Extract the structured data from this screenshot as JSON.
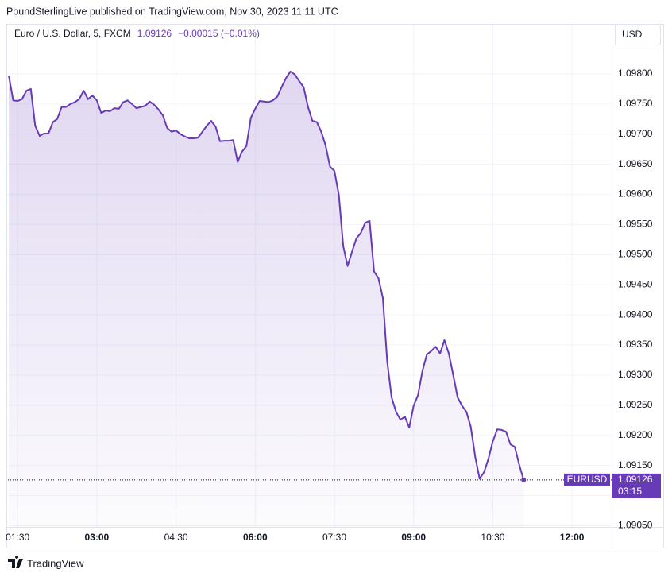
{
  "header": {
    "publisher": "PoundSterlingLive published on TradingView.com, Nov 30, 2023 11:11 UTC"
  },
  "footer": {
    "brand": "TradingView"
  },
  "chart_data": {
    "type": "area",
    "title": "Euro / U.S. Dollar, 5, FXCM",
    "change": "−0.00015 (−0.01%)",
    "currency": "USD",
    "symbol": "EURUSD",
    "countdown": "03:15",
    "x": [
      "01:20",
      "01:25",
      "01:30",
      "01:35",
      "01:40",
      "01:45",
      "01:50",
      "01:55",
      "02:00",
      "02:05",
      "02:10",
      "02:15",
      "02:20",
      "02:25",
      "02:30",
      "02:35",
      "02:40",
      "02:45",
      "02:50",
      "02:55",
      "03:00",
      "03:05",
      "03:10",
      "03:15",
      "03:20",
      "03:25",
      "03:30",
      "03:35",
      "03:40",
      "03:45",
      "03:50",
      "03:55",
      "04:00",
      "04:05",
      "04:10",
      "04:15",
      "04:20",
      "04:25",
      "04:30",
      "04:35",
      "04:40",
      "04:45",
      "04:50",
      "04:55",
      "05:00",
      "05:05",
      "05:10",
      "05:15",
      "05:20",
      "05:25",
      "05:30",
      "05:35",
      "05:40",
      "05:45",
      "05:50",
      "05:55",
      "06:00",
      "06:05",
      "06:10",
      "06:15",
      "06:20",
      "06:25",
      "06:30",
      "06:35",
      "06:40",
      "06:45",
      "06:50",
      "06:55",
      "07:00",
      "07:05",
      "07:10",
      "07:15",
      "07:20",
      "07:25",
      "07:30",
      "07:35",
      "07:40",
      "07:45",
      "07:50",
      "07:55",
      "08:00",
      "08:05",
      "08:10",
      "08:15",
      "08:20",
      "08:25",
      "08:30",
      "08:35",
      "08:40",
      "08:45",
      "08:50",
      "08:55",
      "09:00",
      "09:05",
      "09:10",
      "09:15",
      "09:20",
      "09:25",
      "09:30",
      "09:35",
      "09:40",
      "09:45",
      "09:50",
      "09:55",
      "10:00",
      "10:05",
      "10:10",
      "10:15",
      "10:20",
      "10:25",
      "10:30",
      "10:35",
      "10:40",
      "10:45",
      "10:50",
      "10:55",
      "11:00",
      "11:05"
    ],
    "series": [
      {
        "name": "EURUSD",
        "color": "#673ab7",
        "values": [
          1.09797,
          1.09756,
          1.09755,
          1.09758,
          1.09772,
          1.09775,
          1.09714,
          1.09697,
          1.09701,
          1.09701,
          1.0972,
          1.09725,
          1.09745,
          1.09745,
          1.0975,
          1.09753,
          1.09758,
          1.09772,
          1.09758,
          1.09764,
          1.09756,
          1.09735,
          1.09739,
          1.09738,
          1.09743,
          1.09742,
          1.09753,
          1.09756,
          1.0975,
          1.09743,
          1.09745,
          1.09747,
          1.09754,
          1.09749,
          1.09741,
          1.09731,
          1.0971,
          1.09704,
          1.09706,
          1.097,
          1.09696,
          1.09693,
          1.09693,
          1.09694,
          1.09704,
          1.09714,
          1.09722,
          1.09712,
          1.09688,
          1.09689,
          1.09689,
          1.0969,
          1.09654,
          1.09671,
          1.0968,
          1.09727,
          1.09742,
          1.09755,
          1.09754,
          1.09753,
          1.09756,
          1.09762,
          1.09778,
          1.09793,
          1.09804,
          1.09799,
          1.09788,
          1.09778,
          1.09745,
          1.09722,
          1.0972,
          1.09704,
          1.09681,
          1.09646,
          1.09639,
          1.09599,
          1.09514,
          1.09481,
          1.09505,
          1.09527,
          1.09536,
          1.09553,
          1.09556,
          1.09472,
          1.09461,
          1.09428,
          1.09322,
          1.09263,
          1.09239,
          1.09226,
          1.09231,
          1.09213,
          1.09249,
          1.09267,
          1.09307,
          1.09334,
          1.0934,
          1.09347,
          1.09336,
          1.09358,
          1.09336,
          1.093,
          1.09263,
          1.09249,
          1.09239,
          1.09214,
          1.09164,
          1.09128,
          1.09139,
          1.09161,
          1.0919,
          1.0921,
          1.09209,
          1.09206,
          1.09185,
          1.09181,
          1.09151,
          1.09126
        ]
      }
    ],
    "xlim": [
      "01:19",
      "12:45"
    ],
    "xticks": [
      "01:30",
      "03:00",
      "04:30",
      "06:00",
      "07:30",
      "09:00",
      "10:30",
      "12:00"
    ],
    "ylim": [
      1.09048,
      1.0985
    ],
    "yticks": [
      {
        "value": 1.0905,
        "label": "1.09050"
      },
      {
        "value": 1.091,
        "label": "1.09100"
      },
      {
        "value": 1.0915,
        "label": "1.09150"
      },
      {
        "value": 1.092,
        "label": "1.09200"
      },
      {
        "value": 1.0925,
        "label": "1.09250"
      },
      {
        "value": 1.093,
        "label": "1.09300"
      },
      {
        "value": 1.0935,
        "label": "1.09350"
      },
      {
        "value": 1.094,
        "label": "1.09400"
      },
      {
        "value": 1.0945,
        "label": "1.09450"
      },
      {
        "value": 1.095,
        "label": "1.09500"
      },
      {
        "value": 1.0955,
        "label": "1.09550"
      },
      {
        "value": 1.096,
        "label": "1.09600"
      },
      {
        "value": 1.0965,
        "label": "1.09650"
      },
      {
        "value": 1.097,
        "label": "1.09700"
      },
      {
        "value": 1.0975,
        "label": "1.09750"
      },
      {
        "value": 1.098,
        "label": "1.09800"
      }
    ],
    "grid": true
  }
}
